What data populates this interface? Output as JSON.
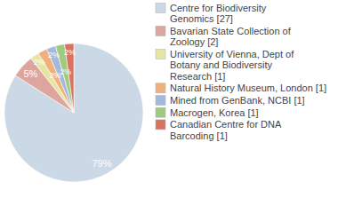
{
  "chart_data": {
    "type": "pie",
    "categories": [
      "Centre for Biodiversity Genomics [27]",
      "Bavarian State Collection of Zoology [2]",
      "University of Vienna, Dept of Botany and Biodiversity Research [1]",
      "Natural History Museum, London [1]",
      "Mined from GenBank, NCBI [1]",
      "Macrogen, Korea [1]",
      "Canadian Centre for DNA Barcoding [1]"
    ],
    "values": [
      79,
      5,
      2,
      2,
      2,
      2,
      2
    ],
    "value_labels": [
      "79%",
      "5%",
      "2%",
      "2%",
      "2%",
      "2%",
      "2%"
    ],
    "colors": [
      "#cbd8e6",
      "#dea49e",
      "#e4e6a2",
      "#f0b07c",
      "#a3b8da",
      "#9ecb80",
      "#d9735f"
    ],
    "data_labels": true,
    "legend": "right"
  }
}
